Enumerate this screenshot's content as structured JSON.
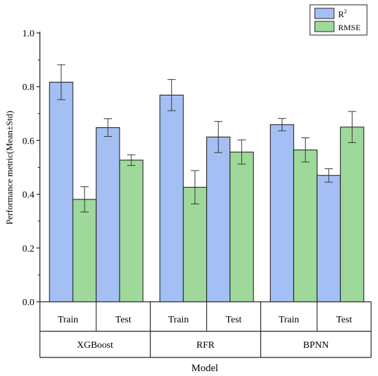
{
  "chart_data": {
    "type": "bar",
    "ylabel": "Performance metric(Mean±Std)",
    "xlabel": "Model",
    "ylim": [
      0,
      1.0
    ],
    "yticks": [
      "0.0",
      "0.2",
      "0.4",
      "0.6",
      "0.8",
      "1.0"
    ],
    "grid": false,
    "legend_position": "top-right",
    "legend": {
      "r2_base": "R",
      "r2_sup": "2",
      "rmse": "RMSE"
    },
    "groups": [
      {
        "model": "XGBoost",
        "splits": [
          {
            "label": "Train",
            "r2": {
              "mean": 0.817,
              "std": 0.065
            },
            "rmse": {
              "mean": 0.381,
              "std": 0.047
            }
          },
          {
            "label": "Test",
            "r2": {
              "mean": 0.648,
              "std": 0.033
            },
            "rmse": {
              "mean": 0.527,
              "std": 0.02
            }
          }
        ]
      },
      {
        "model": "RFR",
        "splits": [
          {
            "label": "Train",
            "r2": {
              "mean": 0.769,
              "std": 0.058
            },
            "rmse": {
              "mean": 0.426,
              "std": 0.062
            }
          },
          {
            "label": "Test",
            "r2": {
              "mean": 0.613,
              "std": 0.058
            },
            "rmse": {
              "mean": 0.557,
              "std": 0.045
            }
          }
        ]
      },
      {
        "model": "BPNN",
        "splits": [
          {
            "label": "Train",
            "r2": {
              "mean": 0.659,
              "std": 0.023
            },
            "rmse": {
              "mean": 0.565,
              "std": 0.045
            }
          },
          {
            "label": "Test",
            "r2": {
              "mean": 0.47,
              "std": 0.025
            },
            "rmse": {
              "mean": 0.65,
              "std": 0.058
            }
          }
        ]
      }
    ],
    "colors": {
      "r2": "#a4bff3",
      "rmse": "#9fd89b",
      "stroke": "#222222"
    }
  }
}
